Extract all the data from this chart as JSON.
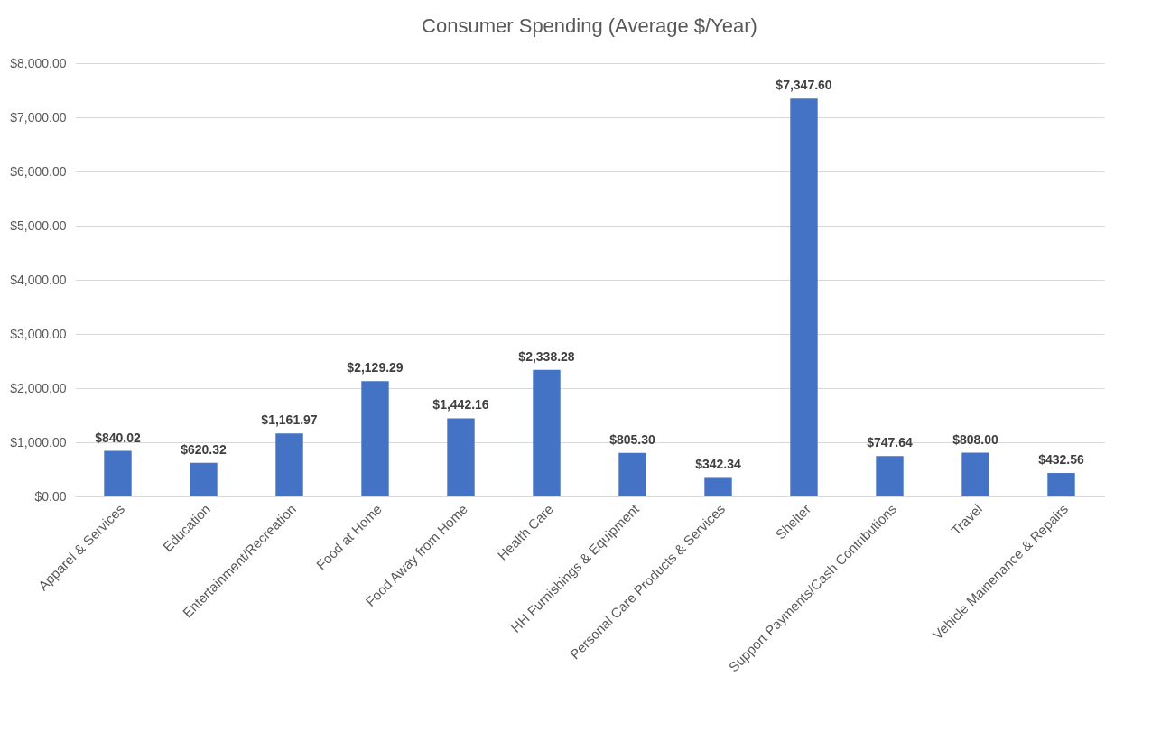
{
  "chart_data": {
    "type": "bar",
    "title": "Consumer Spending (Average $/Year)",
    "categories": [
      "Apparel & Services",
      "Education",
      "Entertainment/Recreation",
      "Food at Home",
      "Food Away from Home",
      "Health Care",
      "HH Furnishings & Equipment",
      "Personal Care Products & Services",
      "Shelter",
      "Support Payments/Cash Contributions",
      "Travel",
      "Vehicle Mainenance & Repairs"
    ],
    "values": [
      840.02,
      620.32,
      1161.97,
      2129.29,
      1442.16,
      2338.28,
      805.3,
      342.34,
      7347.6,
      747.64,
      808.0,
      432.56
    ],
    "value_labels": [
      "$840.02",
      "$620.32",
      "$1,161.97",
      "$2,129.29",
      "$1,442.16",
      "$2,338.28",
      "$805.30",
      "$342.34",
      "$7,347.60",
      "$747.64",
      "$808.00",
      "$432.56"
    ],
    "color": "#4472c4",
    "ylim": [
      0,
      8000
    ],
    "yticks": [
      {
        "value": 0,
        "label": "$0.00"
      },
      {
        "value": 1000,
        "label": "$1,000.00"
      },
      {
        "value": 2000,
        "label": "$2,000.00"
      },
      {
        "value": 3000,
        "label": "$3,000.00"
      },
      {
        "value": 4000,
        "label": "$4,000.00"
      },
      {
        "value": 5000,
        "label": "$5,000.00"
      },
      {
        "value": 6000,
        "label": "$6,000.00"
      },
      {
        "value": 7000,
        "label": "$7,000.00"
      },
      {
        "value": 8000,
        "label": "$8,000.00"
      }
    ],
    "grid": "y"
  }
}
